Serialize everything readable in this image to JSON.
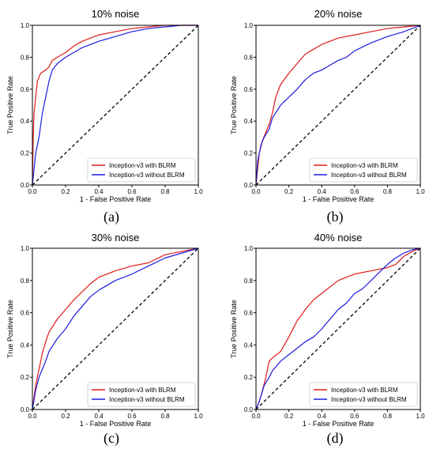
{
  "colors": {
    "with": "#e01b1b",
    "without": "#1c1ce0",
    "diagonal": "#000000"
  },
  "chart_data": [
    {
      "type": "line",
      "panel_label": "(a)",
      "title": "10% noise",
      "xlabel": "1 - False Positive Rate",
      "ylabel": "True Positive Rate",
      "xlim": [
        0,
        1
      ],
      "ylim": [
        0,
        1
      ],
      "xticks": [
        "0.0",
        "0.2",
        "0.4",
        "0.6",
        "0.8",
        "1.0"
      ],
      "yticks": [
        "0.0",
        "0.2",
        "0.4",
        "0.6",
        "0.8",
        "1.0"
      ],
      "legend_position": "lower-right",
      "series": [
        {
          "name": "Inception-v3 with BLRM",
          "color_key": "with",
          "points": [
            [
              0,
              0
            ],
            [
              0.005,
              0.3
            ],
            [
              0.01,
              0.45
            ],
            [
              0.02,
              0.55
            ],
            [
              0.03,
              0.65
            ],
            [
              0.05,
              0.7
            ],
            [
              0.08,
              0.72
            ],
            [
              0.1,
              0.74
            ],
            [
              0.12,
              0.78
            ],
            [
              0.15,
              0.8
            ],
            [
              0.2,
              0.83
            ],
            [
              0.25,
              0.87
            ],
            [
              0.3,
              0.9
            ],
            [
              0.35,
              0.92
            ],
            [
              0.4,
              0.94
            ],
            [
              0.5,
              0.96
            ],
            [
              0.6,
              0.98
            ],
            [
              0.7,
              0.99
            ],
            [
              0.8,
              1.0
            ],
            [
              1.0,
              1.0
            ]
          ]
        },
        {
          "name": "Inception-v3 without BLRM",
          "color_key": "without",
          "points": [
            [
              0,
              0
            ],
            [
              0.01,
              0.1
            ],
            [
              0.02,
              0.2
            ],
            [
              0.04,
              0.3
            ],
            [
              0.06,
              0.45
            ],
            [
              0.08,
              0.55
            ],
            [
              0.1,
              0.65
            ],
            [
              0.12,
              0.72
            ],
            [
              0.15,
              0.76
            ],
            [
              0.2,
              0.8
            ],
            [
              0.25,
              0.83
            ],
            [
              0.3,
              0.86
            ],
            [
              0.4,
              0.9
            ],
            [
              0.5,
              0.93
            ],
            [
              0.6,
              0.96
            ],
            [
              0.7,
              0.98
            ],
            [
              0.8,
              0.99
            ],
            [
              0.9,
              1.0
            ],
            [
              1.0,
              1.0
            ]
          ]
        }
      ]
    },
    {
      "type": "line",
      "panel_label": "(b)",
      "title": "20% noise",
      "xlabel": "1 - False Positive Rate",
      "ylabel": "True Positive Rate",
      "xlim": [
        0,
        1
      ],
      "ylim": [
        0,
        1
      ],
      "xticks": [
        "0.0",
        "0.2",
        "0.4",
        "0.6",
        "0.8",
        "1.0"
      ],
      "yticks": [
        "0.0",
        "0.2",
        "0.4",
        "0.6",
        "0.8",
        "1.0"
      ],
      "legend_position": "lower-right",
      "series": [
        {
          "name": "Inception-v3 with BLRM",
          "color_key": "with",
          "points": [
            [
              0,
              0
            ],
            [
              0.01,
              0.1
            ],
            [
              0.02,
              0.2
            ],
            [
              0.04,
              0.28
            ],
            [
              0.06,
              0.33
            ],
            [
              0.08,
              0.38
            ],
            [
              0.1,
              0.45
            ],
            [
              0.12,
              0.55
            ],
            [
              0.15,
              0.63
            ],
            [
              0.2,
              0.7
            ],
            [
              0.25,
              0.76
            ],
            [
              0.3,
              0.82
            ],
            [
              0.35,
              0.85
            ],
            [
              0.4,
              0.88
            ],
            [
              0.45,
              0.9
            ],
            [
              0.5,
              0.92
            ],
            [
              0.6,
              0.94
            ],
            [
              0.7,
              0.96
            ],
            [
              0.8,
              0.98
            ],
            [
              0.9,
              0.99
            ],
            [
              1.0,
              1.0
            ]
          ]
        },
        {
          "name": "Inception-v3 without BLRM",
          "color_key": "without",
          "points": [
            [
              0,
              0
            ],
            [
              0.01,
              0.15
            ],
            [
              0.03,
              0.25
            ],
            [
              0.05,
              0.3
            ],
            [
              0.08,
              0.35
            ],
            [
              0.1,
              0.42
            ],
            [
              0.15,
              0.5
            ],
            [
              0.2,
              0.55
            ],
            [
              0.25,
              0.6
            ],
            [
              0.3,
              0.66
            ],
            [
              0.35,
              0.7
            ],
            [
              0.4,
              0.72
            ],
            [
              0.45,
              0.75
            ],
            [
              0.5,
              0.78
            ],
            [
              0.55,
              0.8
            ],
            [
              0.6,
              0.84
            ],
            [
              0.7,
              0.89
            ],
            [
              0.8,
              0.93
            ],
            [
              0.9,
              0.96
            ],
            [
              1.0,
              1.0
            ]
          ]
        }
      ]
    },
    {
      "type": "line",
      "panel_label": "(c)",
      "title": "30% noise",
      "xlabel": "1 - False Positive Rate",
      "ylabel": "True Positive Rate",
      "xlim": [
        0,
        1
      ],
      "ylim": [
        0,
        1
      ],
      "xticks": [
        "0.0",
        "0.2",
        "0.4",
        "0.6",
        "0.8",
        "1.0"
      ],
      "yticks": [
        "0.0",
        "0.2",
        "0.4",
        "0.6",
        "0.8",
        "1.0"
      ],
      "legend_position": "lower-right",
      "series": [
        {
          "name": "Inception-v3 with BLRM",
          "color_key": "with",
          "points": [
            [
              0,
              0
            ],
            [
              0.01,
              0.08
            ],
            [
              0.02,
              0.15
            ],
            [
              0.04,
              0.25
            ],
            [
              0.06,
              0.35
            ],
            [
              0.08,
              0.42
            ],
            [
              0.1,
              0.48
            ],
            [
              0.15,
              0.56
            ],
            [
              0.2,
              0.62
            ],
            [
              0.25,
              0.68
            ],
            [
              0.3,
              0.73
            ],
            [
              0.35,
              0.78
            ],
            [
              0.4,
              0.82
            ],
            [
              0.5,
              0.86
            ],
            [
              0.6,
              0.89
            ],
            [
              0.7,
              0.91
            ],
            [
              0.8,
              0.96
            ],
            [
              0.9,
              0.98
            ],
            [
              1.0,
              1.0
            ]
          ]
        },
        {
          "name": "Inception-v3 without BLRM",
          "color_key": "without",
          "points": [
            [
              0,
              0
            ],
            [
              0.02,
              0.12
            ],
            [
              0.04,
              0.2
            ],
            [
              0.06,
              0.25
            ],
            [
              0.08,
              0.3
            ],
            [
              0.1,
              0.36
            ],
            [
              0.15,
              0.44
            ],
            [
              0.2,
              0.5
            ],
            [
              0.25,
              0.58
            ],
            [
              0.3,
              0.64
            ],
            [
              0.35,
              0.7
            ],
            [
              0.4,
              0.74
            ],
            [
              0.5,
              0.8
            ],
            [
              0.6,
              0.84
            ],
            [
              0.7,
              0.89
            ],
            [
              0.8,
              0.94
            ],
            [
              0.9,
              0.97
            ],
            [
              1.0,
              1.0
            ]
          ]
        }
      ]
    },
    {
      "type": "line",
      "panel_label": "(d)",
      "title": "40% noise",
      "xlabel": "1 - False Positive Rate",
      "ylabel": "True Positive Rate",
      "xlim": [
        0,
        1
      ],
      "ylim": [
        0,
        1
      ],
      "xticks": [
        "0.0",
        "0.2",
        "0.4",
        "0.6",
        "0.8",
        "1.0"
      ],
      "yticks": [
        "0.0",
        "0.2",
        "0.4",
        "0.6",
        "0.8",
        "1.0"
      ],
      "legend_position": "lower-right",
      "series": [
        {
          "name": "Inception-v3 with BLRM",
          "color_key": "with",
          "points": [
            [
              0,
              0
            ],
            [
              0.02,
              0.05
            ],
            [
              0.04,
              0.12
            ],
            [
              0.06,
              0.2
            ],
            [
              0.08,
              0.3
            ],
            [
              0.1,
              0.32
            ],
            [
              0.15,
              0.36
            ],
            [
              0.2,
              0.45
            ],
            [
              0.25,
              0.55
            ],
            [
              0.3,
              0.62
            ],
            [
              0.35,
              0.68
            ],
            [
              0.4,
              0.72
            ],
            [
              0.45,
              0.76
            ],
            [
              0.5,
              0.8
            ],
            [
              0.55,
              0.82
            ],
            [
              0.6,
              0.84
            ],
            [
              0.7,
              0.86
            ],
            [
              0.8,
              0.88
            ],
            [
              0.85,
              0.9
            ],
            [
              0.9,
              0.95
            ],
            [
              0.95,
              0.98
            ],
            [
              1.0,
              1.0
            ]
          ]
        },
        {
          "name": "Inception-v3 without BLRM",
          "color_key": "without",
          "points": [
            [
              0,
              0
            ],
            [
              0.02,
              0.05
            ],
            [
              0.05,
              0.15
            ],
            [
              0.08,
              0.2
            ],
            [
              0.1,
              0.24
            ],
            [
              0.15,
              0.3
            ],
            [
              0.2,
              0.34
            ],
            [
              0.25,
              0.38
            ],
            [
              0.3,
              0.42
            ],
            [
              0.35,
              0.45
            ],
            [
              0.4,
              0.5
            ],
            [
              0.45,
              0.56
            ],
            [
              0.5,
              0.62
            ],
            [
              0.55,
              0.66
            ],
            [
              0.6,
              0.72
            ],
            [
              0.65,
              0.75
            ],
            [
              0.7,
              0.8
            ],
            [
              0.75,
              0.85
            ],
            [
              0.8,
              0.9
            ],
            [
              0.85,
              0.94
            ],
            [
              0.9,
              0.97
            ],
            [
              0.95,
              0.99
            ],
            [
              1.0,
              1.0
            ]
          ]
        }
      ]
    }
  ]
}
